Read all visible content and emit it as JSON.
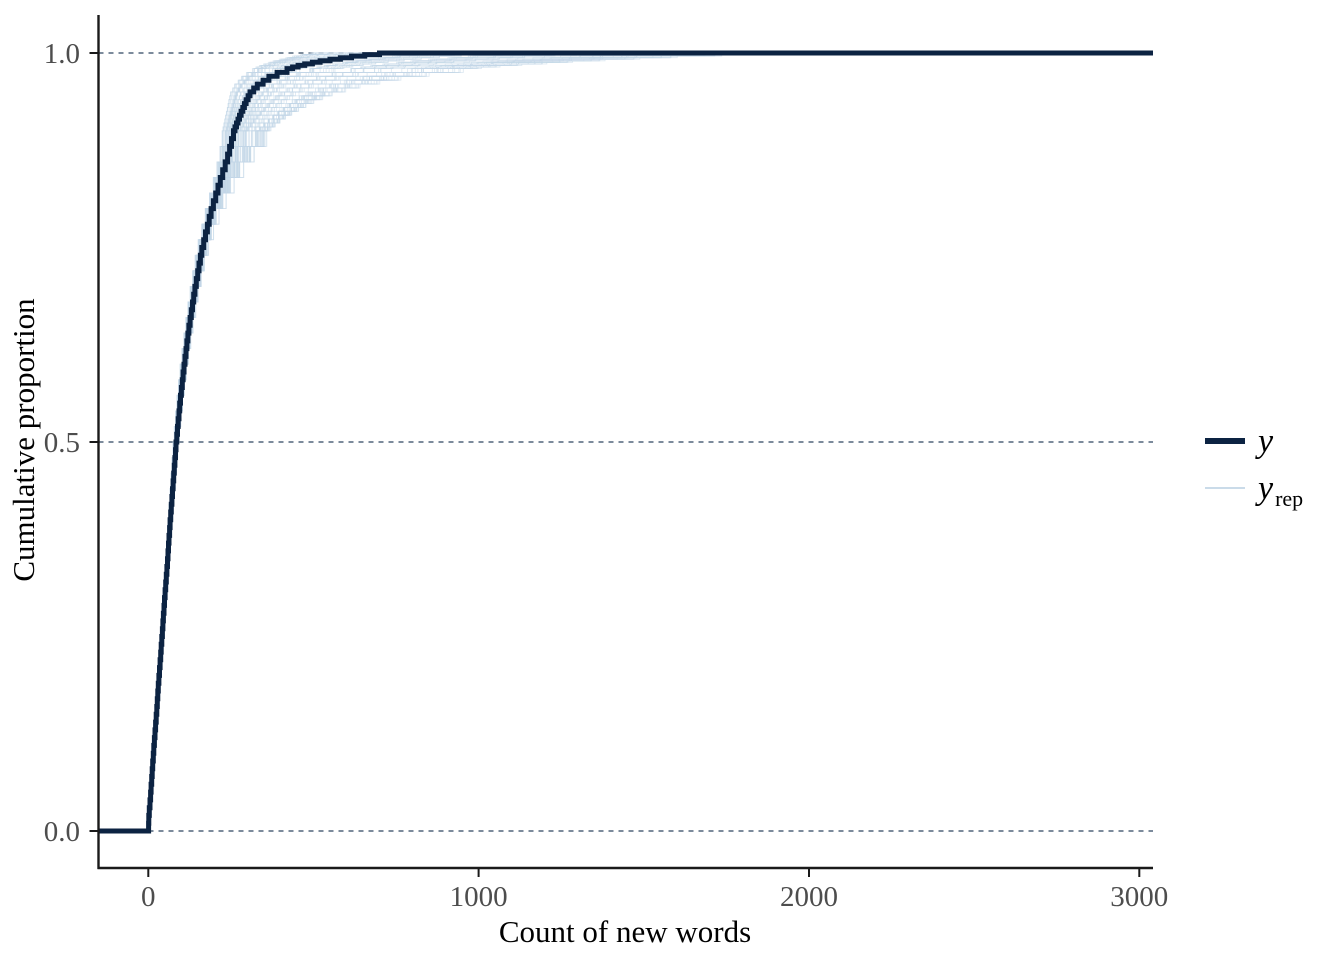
{
  "chart_data": {
    "type": "line",
    "subtype": "ecdf_overlay",
    "title": "",
    "xlabel": "Count of new words",
    "ylabel": "Cumulative proportion",
    "x_ticks": [
      0,
      1000,
      2000,
      3000
    ],
    "x_tick_labels": [
      "0",
      "1000",
      "2000",
      "3000"
    ],
    "y_ticks": [
      0.0,
      0.5,
      1.0
    ],
    "y_tick_labels": [
      "0.0",
      "0.5",
      "1.0"
    ],
    "x_range": [
      -150,
      3040
    ],
    "y_range": [
      -0.048,
      1.049
    ],
    "grid": {
      "horizontal_dashed_at": [
        0.0,
        0.5,
        1.0
      ],
      "color": "#2e4660",
      "style": "dashed"
    },
    "legend": {
      "position": "right",
      "entries": [
        {
          "label": "y",
          "sub": "",
          "swatch": "thick-line",
          "color": "#0c2342"
        },
        {
          "label": "y",
          "sub": "rep",
          "swatch": "thin-line",
          "color": "#cadbe9"
        }
      ]
    },
    "series": [
      {
        "name": "y",
        "role": "observed-ecdf",
        "color": "#0c2342",
        "line_width": 5,
        "summary": {
          "min": 0,
          "median": 84,
          "reaches_1_at": 700
        },
        "quantiles": [
          [
            0.0,
            0
          ],
          [
            0.025,
            2
          ],
          [
            0.05,
            7
          ],
          [
            0.1,
            15
          ],
          [
            0.15,
            24
          ],
          [
            0.2,
            32
          ],
          [
            0.25,
            41
          ],
          [
            0.3,
            49
          ],
          [
            0.35,
            58
          ],
          [
            0.4,
            66
          ],
          [
            0.45,
            75
          ],
          [
            0.5,
            84
          ],
          [
            0.55,
            95
          ],
          [
            0.6,
            108
          ],
          [
            0.65,
            123
          ],
          [
            0.7,
            141
          ],
          [
            0.75,
            162
          ],
          [
            0.8,
            190
          ],
          [
            0.84,
            218
          ],
          [
            0.87,
            240
          ],
          [
            0.9,
            258
          ],
          [
            0.92,
            276
          ],
          [
            0.94,
            296
          ],
          [
            0.95,
            308
          ],
          [
            0.96,
            330
          ],
          [
            0.97,
            365
          ],
          [
            0.975,
            390
          ],
          [
            0.98,
            420
          ],
          [
            0.985,
            462
          ],
          [
            0.99,
            520
          ],
          [
            0.993,
            565
          ],
          [
            0.996,
            615
          ],
          [
            0.998,
            655
          ],
          [
            1.0,
            700
          ]
        ]
      },
      {
        "name": "y_rep",
        "role": "replicate-ecdf-ensemble",
        "color": "#c3d7e7",
        "opacity": 0.55,
        "line_width": 0.9,
        "n_curves": 90,
        "seed": 42,
        "mid_scale_range": [
          0.9,
          1.06
        ],
        "tail_scale_range": [
          0.7,
          2.75
        ],
        "tail_exponent": 14,
        "reaches_1_between": [
          520,
          1920
        ]
      }
    ],
    "axis_color": "#1a1a1a",
    "tick_label_color": "#4d4d4d"
  }
}
